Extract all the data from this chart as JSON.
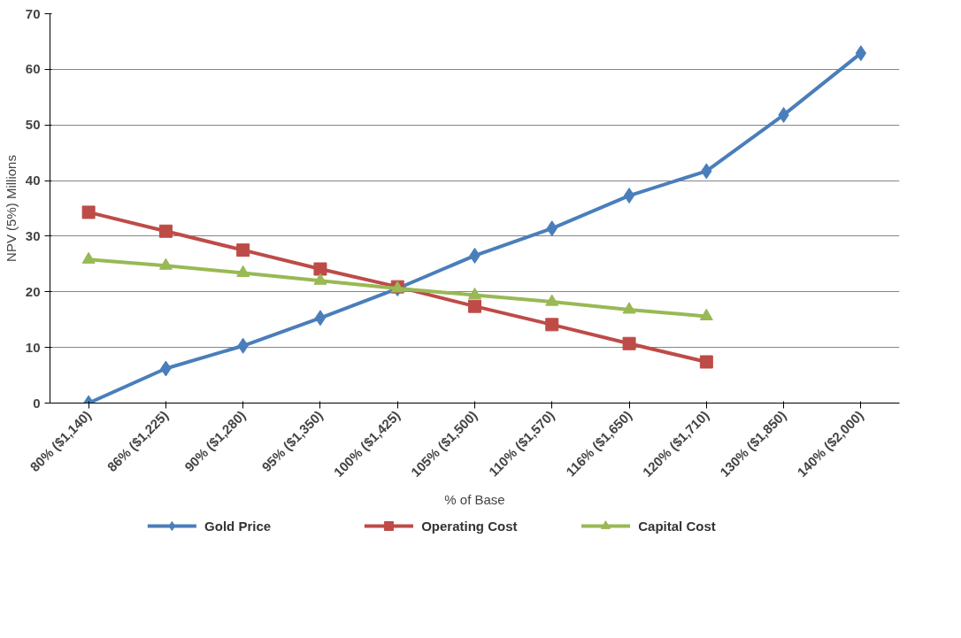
{
  "chart_data": {
    "type": "line",
    "xlabel": "% of Base",
    "ylabel": "NPV (5%) Millions",
    "categories": [
      "80% ($1,140)",
      "86% ($1,225)",
      "90% ($1,280)",
      "95% ($1,350)",
      "100% ($1,425)",
      "105% ($1,500)",
      "110% ($1,570)",
      "116% ($1,650)",
      "120% ($1,710)",
      "130% ($1,850)",
      "140% ($2,000)"
    ],
    "series": [
      {
        "name": "Gold Price",
        "color": "#4a7ebb",
        "marker": "diamond",
        "values": [
          0,
          6.2,
          10.3,
          15.3,
          20.6,
          26.5,
          31.4,
          37.3,
          41.7,
          51.8,
          62.9
        ]
      },
      {
        "name": "Operating Cost",
        "color": "#be4b48",
        "marker": "square",
        "values": [
          34.3,
          30.9,
          27.5,
          24.1,
          20.9,
          17.4,
          14.1,
          10.7,
          7.4,
          null,
          null
        ]
      },
      {
        "name": "Capital Cost",
        "color": "#98b954",
        "marker": "triangle",
        "values": [
          25.8,
          24.7,
          23.4,
          22.0,
          20.6,
          19.4,
          18.2,
          16.8,
          15.6,
          null,
          null
        ]
      }
    ],
    "ylim": [
      0,
      70
    ],
    "yticks": [
      0,
      10,
      20,
      30,
      40,
      50,
      60,
      70
    ],
    "grid": "y",
    "legend": "bottom",
    "line_style": "solid"
  }
}
